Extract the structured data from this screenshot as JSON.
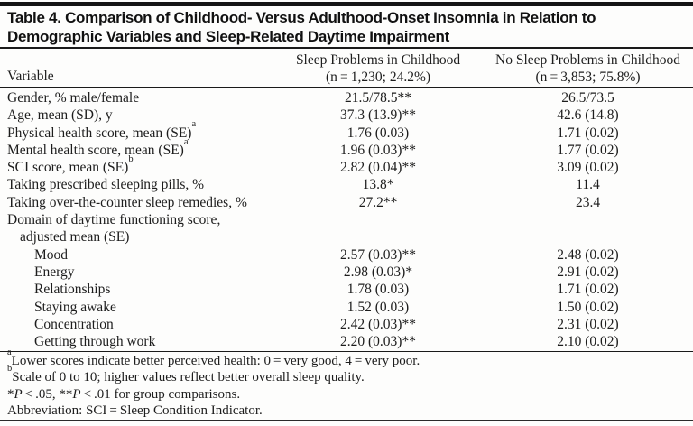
{
  "table": {
    "title_line1": "Table 4. Comparison of Childhood- Versus Adulthood-Onset Insomnia in Relation to",
    "title_line2": "Demographic Variables and Sleep-Related Daytime Impairment",
    "header": {
      "variable": "Variable",
      "group1_line1": "Sleep Problems in Childhood",
      "group1_line2": "(n = 1,230; 24.2%)",
      "group2_line1": "No Sleep Problems in Childhood",
      "group2_line2": "(n = 3,853; 75.8%)"
    },
    "rows": [
      {
        "label": "Gender, % male/female",
        "sup": "",
        "indent": 0,
        "v1": "21.5/78.5**",
        "v2": "26.5/73.5"
      },
      {
        "label": "Age, mean (SD), y",
        "sup": "",
        "indent": 0,
        "v1": "37.3 (13.9)**",
        "v2": "42.6 (14.8)"
      },
      {
        "label": "Physical health score, mean (SE)",
        "sup": "a",
        "indent": 0,
        "v1": "1.76 (0.03)",
        "v2": "1.71 (0.02)"
      },
      {
        "label": "Mental health score, mean (SE)",
        "sup": "a",
        "indent": 0,
        "v1": "1.96 (0.03)**",
        "v2": "1.77 (0.02)"
      },
      {
        "label": "SCI score, mean (SE)",
        "sup": "b",
        "indent": 0,
        "v1": "2.82 (0.04)**",
        "v2": "3.09 (0.02)"
      },
      {
        "label": "Taking prescribed sleeping pills, %",
        "sup": "",
        "indent": 0,
        "v1": "13.8*",
        "v2": "11.4"
      },
      {
        "label": "Taking over-the-counter sleep remedies, %",
        "sup": "",
        "indent": 0,
        "v1": "27.2**",
        "v2": "23.4"
      },
      {
        "label": "Domain of daytime functioning score,",
        "sup": "",
        "indent": 0,
        "v1": "",
        "v2": ""
      },
      {
        "label": "adjusted mean (SE)",
        "sup": "",
        "indent": 1,
        "v1": "",
        "v2": ""
      },
      {
        "label": "Mood",
        "sup": "",
        "indent": 2,
        "v1": "2.57 (0.03)**",
        "v2": "2.48 (0.02)"
      },
      {
        "label": "Energy",
        "sup": "",
        "indent": 2,
        "v1": "2.98 (0.03)*",
        "v2": "2.91 (0.02)"
      },
      {
        "label": "Relationships",
        "sup": "",
        "indent": 2,
        "v1": "1.78 (0.03)",
        "v2": "1.71 (0.02)"
      },
      {
        "label": "Staying awake",
        "sup": "",
        "indent": 2,
        "v1": "1.52 (0.03)",
        "v2": "1.50 (0.02)"
      },
      {
        "label": "Concentration",
        "sup": "",
        "indent": 2,
        "v1": "2.42 (0.03)**",
        "v2": "2.31 (0.02)"
      },
      {
        "label": "Getting through work",
        "sup": "",
        "indent": 2,
        "v1": "2.20 (0.03)**",
        "v2": "2.10 (0.02)"
      }
    ],
    "footnotes": [
      {
        "segments": [
          {
            "t": "a",
            "style": "sup"
          },
          {
            "t": "Lower scores indicate better perceived health: 0 = very good, 4 = very poor.",
            "style": ""
          }
        ]
      },
      {
        "segments": [
          {
            "t": "b",
            "style": "sup"
          },
          {
            "t": "Scale of 0 to 10; higher values reflect better overall sleep quality.",
            "style": ""
          }
        ]
      },
      {
        "segments": [
          {
            "t": "*",
            "style": ""
          },
          {
            "t": "P",
            "style": "italic"
          },
          {
            "t": " < .05, **",
            "style": ""
          },
          {
            "t": "P",
            "style": "italic"
          },
          {
            "t": " < .01 for group comparisons.",
            "style": ""
          }
        ]
      },
      {
        "segments": [
          {
            "t": "Abbreviation: SCI = Sleep Condition Indicator.",
            "style": ""
          }
        ]
      }
    ]
  }
}
